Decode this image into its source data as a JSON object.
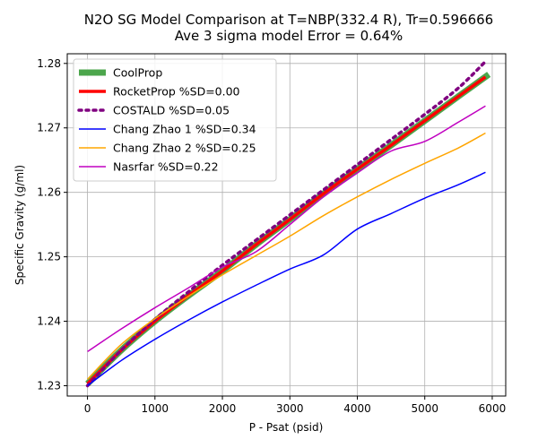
{
  "chart_data": {
    "type": "line",
    "title": "N2O SG Model Comparison at T=NBP(332.4 R), Tr=0.596666",
    "subtitle": "Ave 3 sigma model Error = 0.64%",
    "xlabel": "P - Psat (psid)",
    "ylabel": "Specific Gravity (g/ml)",
    "xlim": [
      -300,
      6200
    ],
    "ylim": [
      1.2284,
      1.2815
    ],
    "xticks": [
      0,
      1000,
      2000,
      3000,
      4000,
      5000,
      6000
    ],
    "xtick_labels": [
      "0",
      "1000",
      "2000",
      "3000",
      "4000",
      "5000",
      "6000"
    ],
    "yticks": [
      1.23,
      1.24,
      1.25,
      1.26,
      1.27,
      1.28
    ],
    "ytick_labels": [
      "1.23",
      "1.24",
      "1.25",
      "1.26",
      "1.27",
      "1.28"
    ],
    "grid": true,
    "legend_position": "top-left",
    "x": [
      0,
      500,
      1000,
      1500,
      2000,
      2500,
      3000,
      3500,
      4000,
      4500,
      5000,
      5500,
      5900
    ],
    "series": [
      {
        "name": "CoolProp",
        "color": "#4ca64c",
        "style": "solid-thick",
        "x": [
          0,
          500,
          1000,
          1500,
          2000,
          2500,
          3000,
          3500,
          4000,
          4500,
          5000,
          5500,
          5950
        ],
        "values": [
          1.2303,
          1.2355,
          1.24,
          1.244,
          1.2478,
          1.2519,
          1.2558,
          1.2598,
          1.2636,
          1.2673,
          1.2711,
          1.2749,
          1.2783
        ]
      },
      {
        "name": "RocketProp %SD=0.00",
        "color": "#ff0000",
        "style": "solid-medium",
        "values": [
          1.2303,
          1.2355,
          1.24,
          1.244,
          1.2478,
          1.2519,
          1.2558,
          1.2598,
          1.2636,
          1.2673,
          1.2711,
          1.2749,
          1.2779
        ]
      },
      {
        "name": "COSTALD %SD=0.05",
        "color": "#800080",
        "style": "dotted",
        "values": [
          1.23,
          1.2355,
          1.2403,
          1.2446,
          1.2487,
          1.2526,
          1.2565,
          1.2604,
          1.2643,
          1.2682,
          1.2721,
          1.2762,
          1.2803
        ]
      },
      {
        "name": "Chang Zhao 1 %SD=0.34",
        "color": "#0000ff",
        "style": "solid-thin",
        "values": [
          1.23,
          1.2339,
          1.2372,
          1.2402,
          1.243,
          1.2456,
          1.2481,
          1.2503,
          1.2543,
          1.2567,
          1.2591,
          1.2612,
          1.2631
        ]
      },
      {
        "name": "Chang Zhao 2 %SD=0.25",
        "color": "#ffa500",
        "style": "solid-thin",
        "values": [
          1.231,
          1.2364,
          1.2404,
          1.2439,
          1.2472,
          1.2502,
          1.2532,
          1.2564,
          1.2593,
          1.262,
          1.2645,
          1.2669,
          1.2692
        ]
      },
      {
        "name": "Nasrfar %SD=0.22",
        "color": "#c000c0",
        "style": "solid-thin",
        "values": [
          1.2353,
          1.2388,
          1.2421,
          1.2452,
          1.2484,
          1.2508,
          1.255,
          1.2593,
          1.263,
          1.2664,
          1.2679,
          1.2709,
          1.2734
        ]
      }
    ]
  }
}
